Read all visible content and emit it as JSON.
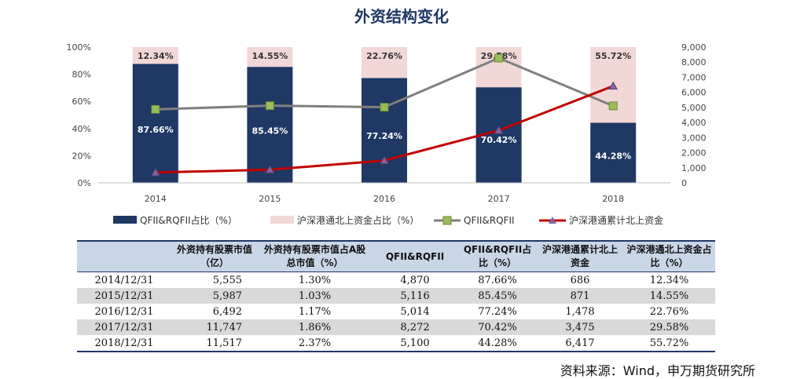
{
  "chart_data": {
    "type": "bar",
    "title": "外资结构变化",
    "categories": [
      "2014",
      "2015",
      "2016",
      "2017",
      "2018"
    ],
    "left_axis": {
      "ylim": [
        0,
        100
      ],
      "ticks": [
        "0%",
        "20%",
        "40%",
        "60%",
        "80%",
        "100%"
      ]
    },
    "right_axis": {
      "ylim": [
        0,
        9000
      ],
      "ticks": [
        "0",
        "1,000",
        "2,000",
        "3,000",
        "4,000",
        "5,000",
        "6,000",
        "7,000",
        "8,000",
        "9,000"
      ]
    },
    "series": [
      {
        "name": "QFII&RQFII占比（%）",
        "kind": "stacked-bar",
        "axis": "left",
        "color": "#1f3864",
        "values": [
          87.66,
          85.45,
          77.24,
          70.42,
          44.28
        ],
        "labels": [
          "87.66%",
          "85.45%",
          "77.24%",
          "70.42%",
          "44.28%"
        ]
      },
      {
        "name": "沪深港通北上资金占比（%）",
        "kind": "stacked-bar",
        "axis": "left",
        "color": "#f2d7d7",
        "values": [
          12.34,
          14.55,
          22.76,
          29.58,
          55.72
        ],
        "labels": [
          "12.34%",
          "14.55%",
          "22.76%",
          "29.58%",
          "55.72%"
        ]
      },
      {
        "name": "QFII&RQFII",
        "kind": "line",
        "axis": "right",
        "color": "#7f7f7f",
        "marker": "square",
        "values": [
          4870,
          5116,
          5014,
          8272,
          5100
        ]
      },
      {
        "name": "沪深港通累计北上资金",
        "kind": "line",
        "axis": "right",
        "color": "#c00000",
        "marker": "triangle",
        "values": [
          686,
          871,
          1478,
          3475,
          6417
        ]
      }
    ],
    "legend_position": "bottom",
    "grid": false
  },
  "table": {
    "headers": [
      "",
      "外资持有股票市值（亿）",
      "外资持有股票市值占A股总市值（%）",
      "QFII&RQFII",
      "QFII&RQFII占比（%）",
      "沪深港通累计北上资金",
      "沪深港通北上资金占比（%）"
    ],
    "rows": [
      [
        "2014/12/31",
        "5,555",
        "1.30%",
        "4,870",
        "87.66%",
        "686",
        "12.34%"
      ],
      [
        "2015/12/31",
        "5,987",
        "1.03%",
        "5,116",
        "85.45%",
        "871",
        "14.55%"
      ],
      [
        "2016/12/31",
        "6,492",
        "1.17%",
        "5,014",
        "77.24%",
        "1,478",
        "22.76%"
      ],
      [
        "2017/12/31",
        "11,747",
        "1.86%",
        "8,272",
        "70.42%",
        "3,475",
        "29.58%"
      ],
      [
        "2018/12/31",
        "11,517",
        "2.37%",
        "5,100",
        "44.28%",
        "6,417",
        "55.72%"
      ]
    ]
  },
  "source": "资料来源：Wind，申万期货研究所"
}
